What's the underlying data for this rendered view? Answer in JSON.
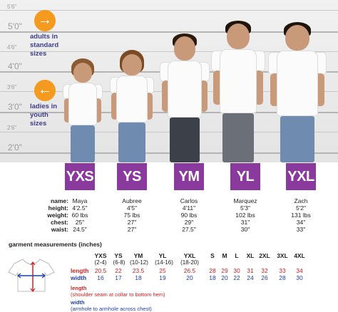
{
  "scale_labels": {
    "h5_6": "5'6\"",
    "h5_0": "5'0\"",
    "h4_6": "4'6\"",
    "h4_0": "4'0\"",
    "h3_6": "3'6\"",
    "h3_0": "3'0\"",
    "h2_6": "2'6\"",
    "h2_0": "2'0\""
  },
  "notes": {
    "adults": [
      "adults in",
      "standard",
      "sizes"
    ],
    "ladies": [
      "ladies in",
      "youth",
      "sizes"
    ]
  },
  "icons": {
    "adults_arrow": "arrow-right-icon",
    "ladies_arrow": "arrow-left-icon"
  },
  "colors": {
    "size_box": "#8a3a9c",
    "badge": "#f39a1f",
    "length": "#d42020",
    "width": "#1f3fa8"
  },
  "sizes": [
    "YXS",
    "YS",
    "YM",
    "YL",
    "YXL"
  ],
  "labels": {
    "name": "name:",
    "height": "height:",
    "weight": "weight:",
    "chest": "chest:",
    "waist": "waist:"
  },
  "models": [
    {
      "name": "Maya",
      "height": "4'2.5\"",
      "weight": "60 lbs",
      "chest": "25\"",
      "waist": "24.5\""
    },
    {
      "name": "Aubree",
      "height": "4'5\"",
      "weight": "75 lbs",
      "chest": "27\"",
      "waist": "27\""
    },
    {
      "name": "Carlos",
      "height": "4'11\"",
      "weight": "90 lbs",
      "chest": "29\"",
      "waist": "27.5\""
    },
    {
      "name": "Marquez",
      "height": "5'3\"",
      "weight": "102 lbs",
      "chest": "31\"",
      "waist": "30\""
    },
    {
      "name": "Zach",
      "height": "5'2\"",
      "weight": "131 lbs",
      "chest": "34\"",
      "waist": "33\""
    }
  ],
  "garment": {
    "title": "garment measurements (inches)",
    "row_length": "length",
    "row_width": "width",
    "sizes": [
      "YXS",
      "YS",
      "YM",
      "YL",
      "YXL",
      "S",
      "M",
      "L",
      "XL",
      "2XL",
      "3XL",
      "4XL"
    ],
    "ranges": [
      "(2-4)",
      "(6-8)",
      "(10-12)",
      "(14-16)",
      "(18-20)",
      "",
      "",
      "",
      "",
      "",
      "",
      ""
    ],
    "length": [
      "20.5",
      "22",
      "23.5",
      "25",
      "26.5",
      "28",
      "29",
      "30",
      "31",
      "32",
      "33",
      "34"
    ],
    "width": [
      "16",
      "17",
      "18",
      "19",
      "20",
      "18",
      "20",
      "22",
      "24",
      "26",
      "28",
      "30"
    ],
    "length_note_title": "length",
    "length_note": "(shoulder seam at collar to bottom hem)",
    "width_note_title": "width",
    "width_note": "(armhole to armhole across chest)"
  }
}
